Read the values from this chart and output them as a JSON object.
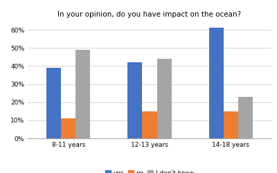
{
  "title": "In your opinion, do you have impact on the ocean?",
  "categories": [
    "8-11 years",
    "12-13 years",
    "14-18 years"
  ],
  "series": {
    "yes": [
      39,
      42,
      61
    ],
    "no": [
      11,
      15,
      15
    ],
    "I don't know": [
      49,
      44,
      23
    ]
  },
  "colors": {
    "yes": "#4472C4",
    "no": "#ED7D31",
    "I don't know": "#A5A5A5"
  },
  "ylim": [
    0,
    65
  ],
  "yticks": [
    0,
    10,
    20,
    30,
    40,
    50,
    60
  ],
  "bar_width": 0.18,
  "background_color": "#ffffff",
  "grid_color": "#cccccc",
  "title_fontsize": 7.5,
  "tick_fontsize": 6.5,
  "legend_fontsize": 6.5
}
